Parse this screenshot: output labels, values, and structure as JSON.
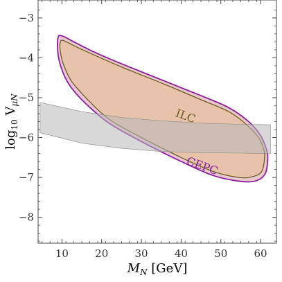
{
  "chart_data": {
    "type": "area",
    "xlabel_main": "M",
    "xlabel_sub": "N",
    "xlabel_unit": " [GeV]",
    "ylabel_main": "log",
    "ylabel_sub1": "10",
    "ylabel_mid": " V",
    "ylabel_sub2": "μN",
    "xlim": [
      4,
      64
    ],
    "ylim": [
      -8.65,
      -2.55
    ],
    "x_ticks": [
      10,
      20,
      30,
      40,
      50,
      60
    ],
    "x_tick_labels": [
      "10",
      "20",
      "30",
      "40",
      "50",
      "60"
    ],
    "y_ticks": [
      -3,
      -4,
      -5,
      -6,
      -7,
      -8
    ],
    "y_tick_labels": [
      "−3",
      "−4",
      "−5",
      "−6",
      "−7",
      "−8"
    ],
    "colors": {
      "cepc_stroke": "#8b1e9c",
      "cepc_fill": "#e9c9cf",
      "ilc_stroke": "#6b5a1e",
      "ilc_fill": "#e8c3ac",
      "band_fill": "#b8b8b8",
      "axis": "#444444"
    },
    "series": [
      {
        "name": "CEPC",
        "label_pos": [
          45.0,
          -6.8
        ],
        "label_rot": 20,
        "points": [
          [
            9.0,
            -3.5
          ],
          [
            10.0,
            -3.45
          ],
          [
            13.0,
            -3.6
          ],
          [
            18.0,
            -3.85
          ],
          [
            25.0,
            -4.15
          ],
          [
            35.0,
            -4.55
          ],
          [
            45.0,
            -4.95
          ],
          [
            52.0,
            -5.25
          ],
          [
            57.0,
            -5.6
          ],
          [
            60.0,
            -5.95
          ],
          [
            61.5,
            -6.3
          ],
          [
            61.8,
            -6.55
          ],
          [
            61.2,
            -6.9
          ],
          [
            59.0,
            -7.08
          ],
          [
            55.0,
            -7.1
          ],
          [
            48.0,
            -6.95
          ],
          [
            40.0,
            -6.6
          ],
          [
            30.0,
            -6.1
          ],
          [
            22.0,
            -5.65
          ],
          [
            16.0,
            -5.15
          ],
          [
            12.0,
            -4.7
          ],
          [
            10.0,
            -4.3
          ],
          [
            9.0,
            -3.9
          ]
        ]
      },
      {
        "name": "ILC",
        "label_pos": [
          40.8,
          -5.55
        ],
        "label_rot": 20,
        "points": [
          [
            9.6,
            -3.6
          ],
          [
            10.5,
            -3.57
          ],
          [
            13.5,
            -3.72
          ],
          [
            19.0,
            -3.97
          ],
          [
            26.0,
            -4.27
          ],
          [
            36.0,
            -4.67
          ],
          [
            45.0,
            -5.05
          ],
          [
            52.0,
            -5.35
          ],
          [
            56.5,
            -5.68
          ],
          [
            59.5,
            -6.0
          ],
          [
            60.8,
            -6.3
          ],
          [
            61.0,
            -6.52
          ],
          [
            60.3,
            -6.85
          ],
          [
            58.0,
            -6.98
          ],
          [
            54.5,
            -7.0
          ],
          [
            48.0,
            -6.85
          ],
          [
            40.0,
            -6.5
          ],
          [
            30.0,
            -6.0
          ],
          [
            22.0,
            -5.55
          ],
          [
            16.5,
            -5.05
          ],
          [
            12.5,
            -4.6
          ],
          [
            10.5,
            -4.2
          ],
          [
            9.6,
            -3.85
          ]
        ]
      },
      {
        "name": "",
        "band_upper": [
          [
            4.5,
            -5.12
          ],
          [
            15.0,
            -5.35
          ],
          [
            25.0,
            -5.5
          ],
          [
            35.0,
            -5.58
          ],
          [
            45.0,
            -5.64
          ],
          [
            55.0,
            -5.67
          ],
          [
            62.5,
            -5.68
          ]
        ],
        "band_lower": [
          [
            4.5,
            -5.88
          ],
          [
            15.0,
            -6.14
          ],
          [
            25.0,
            -6.27
          ],
          [
            35.0,
            -6.35
          ],
          [
            45.0,
            -6.38
          ],
          [
            55.0,
            -6.39
          ],
          [
            62.5,
            -6.4
          ]
        ]
      }
    ]
  }
}
